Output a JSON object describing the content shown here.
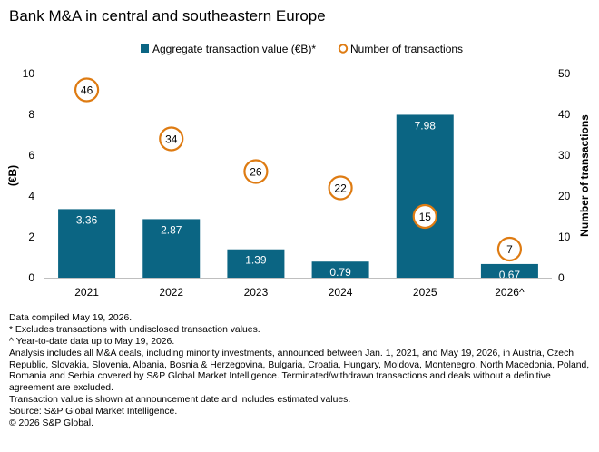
{
  "chart_data": {
    "type": "bar",
    "title": "Bank M&A in central and southeastern Europe",
    "categories": [
      "2021",
      "2022",
      "2023",
      "2024",
      "2025",
      "2026^"
    ],
    "series": [
      {
        "name": "Aggregate transaction value (€B)*",
        "type": "bar",
        "axis": "left",
        "values": [
          3.36,
          2.87,
          1.39,
          0.79,
          7.98,
          0.67
        ],
        "labels": [
          "3.36",
          "2.87",
          "1.39",
          "0.79",
          "7.98",
          "0.67"
        ]
      },
      {
        "name": "Number of transactions",
        "type": "scatter",
        "axis": "right",
        "values": [
          46,
          34,
          26,
          22,
          15,
          7
        ],
        "labels": [
          "46",
          "34",
          "26",
          "22",
          "15",
          "7"
        ]
      }
    ],
    "ylabel": "(€B)",
    "ylim": [
      0,
      10
    ],
    "yticks": [
      "0",
      "2",
      "4",
      "6",
      "8",
      "10"
    ],
    "y2label": "Number of transactions",
    "y2lim": [
      0,
      50
    ],
    "y2ticks": [
      "0",
      "10",
      "20",
      "30",
      "40",
      "50"
    ],
    "grid": false,
    "legend": "top-center",
    "colors": {
      "bar": "#0b6583",
      "marker": "#de7b12"
    }
  },
  "notes": [
    "Data compiled May 19, 2026.",
    "* Excludes transactions with undisclosed transaction values.",
    "^ Year-to-date data up to May 19, 2026.",
    "Analysis includes all M&A deals, including minority investments, announced between Jan. 1, 2021, and May 19, 2026, in Austria, Czech Republic, Slovakia, Slovenia, Albania, Bosnia & Herzegovina, Bulgaria, Croatia, Hungary, Moldova, Montenegro, North Macedonia, Poland, Romania and Serbia covered by S&P Global Market Intelligence. Terminated/withdrawn transactions and deals without a definitive agreement are excluded.",
    "Transaction value is shown at announcement date and includes estimated values.",
    "Source: S&P Global Market Intelligence.",
    "© 2026 S&P Global."
  ]
}
